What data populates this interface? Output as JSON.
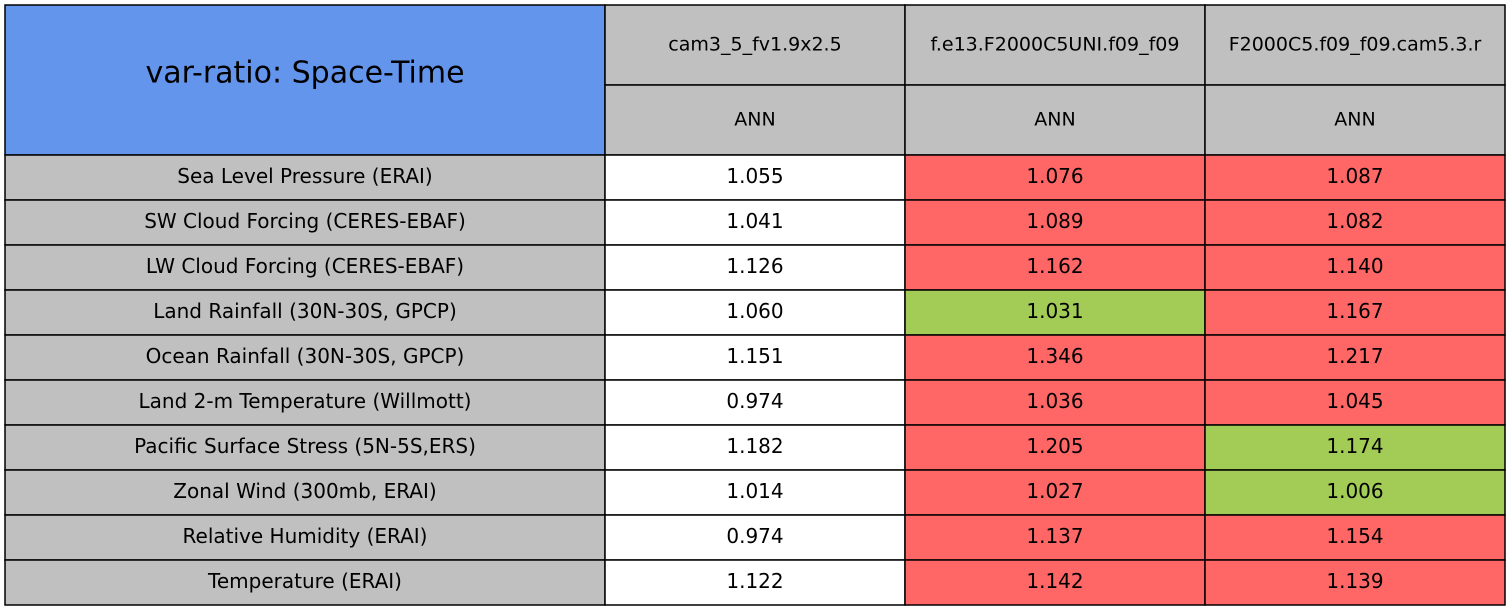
{
  "table": {
    "title": "var-ratio: Space-Time",
    "columns": [
      "cam3_5_fv1.9x2.5",
      "f.e13.F2000C5UNI.f09_f09",
      "F2000C5.f09_f09.cam5.3.r"
    ],
    "seasons": [
      "ANN",
      "ANN",
      "ANN"
    ],
    "colors": {
      "title": "#6495ed",
      "header": "#c0c0c0",
      "label": "#c0c0c0",
      "base": "#ffffff",
      "worse": "#ff6666",
      "better": "#a2cc55"
    },
    "rows": [
      {
        "label": "Sea Level Pressure (ERAI)",
        "values": [
          "1.055",
          "1.076",
          "1.087"
        ],
        "status": [
          "base",
          "worse",
          "worse"
        ]
      },
      {
        "label": "SW Cloud Forcing (CERES-EBAF)",
        "values": [
          "1.041",
          "1.089",
          "1.082"
        ],
        "status": [
          "base",
          "worse",
          "worse"
        ]
      },
      {
        "label": "LW Cloud Forcing (CERES-EBAF)",
        "values": [
          "1.126",
          "1.162",
          "1.140"
        ],
        "status": [
          "base",
          "worse",
          "worse"
        ]
      },
      {
        "label": "Land Rainfall (30N-30S, GPCP)",
        "values": [
          "1.060",
          "1.031",
          "1.167"
        ],
        "status": [
          "base",
          "better",
          "worse"
        ]
      },
      {
        "label": "Ocean Rainfall (30N-30S, GPCP)",
        "values": [
          "1.151",
          "1.346",
          "1.217"
        ],
        "status": [
          "base",
          "worse",
          "worse"
        ]
      },
      {
        "label": "Land 2-m Temperature (Willmott)",
        "values": [
          "0.974",
          "1.036",
          "1.045"
        ],
        "status": [
          "base",
          "worse",
          "worse"
        ]
      },
      {
        "label": "Pacific Surface Stress (5N-5S,ERS)",
        "values": [
          "1.182",
          "1.205",
          "1.174"
        ],
        "status": [
          "base",
          "worse",
          "better"
        ]
      },
      {
        "label": "Zonal Wind (300mb, ERAI)",
        "values": [
          "1.014",
          "1.027",
          "1.006"
        ],
        "status": [
          "base",
          "worse",
          "better"
        ]
      },
      {
        "label": "Relative Humidity (ERAI)",
        "values": [
          "0.974",
          "1.137",
          "1.154"
        ],
        "status": [
          "base",
          "worse",
          "worse"
        ]
      },
      {
        "label": "Temperature (ERAI)",
        "values": [
          "1.122",
          "1.142",
          "1.139"
        ],
        "status": [
          "base",
          "worse",
          "worse"
        ]
      }
    ]
  }
}
